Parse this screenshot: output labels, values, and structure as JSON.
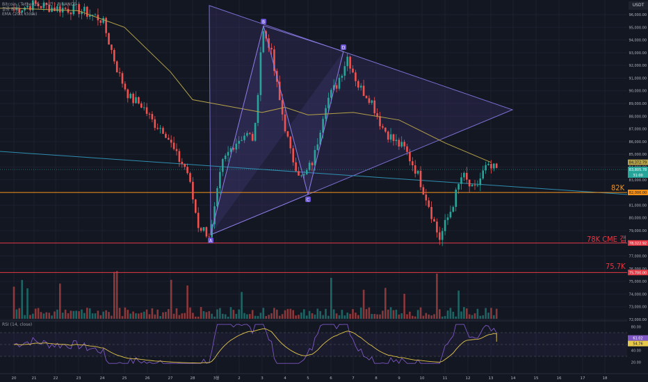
{
  "header": {
    "symbol_line": "Bitcoin / TetherUS · 1시간 · BINANCE",
    "line2": "볼륨 BTC",
    "ema_label": "EMA (200, close)",
    "currency": "USDT"
  },
  "rsi": {
    "label": "RSI (14, close)",
    "value_label": "61.02",
    "ma_label": "54.76",
    "levels": [
      70,
      50,
      30
    ]
  },
  "price_axis": {
    "ticks": [
      "96,000.00",
      "95,000.00",
      "94,000.00",
      "93,000.00",
      "92,000.00",
      "91,000.00",
      "90,000.00",
      "89,000.00",
      "88,000.00",
      "87,000.00",
      "86,000.00",
      "85,000.00",
      "84,000.00",
      "83,000.00",
      "82,000.00",
      "81,000.00",
      "80,000.00",
      "79,000.00",
      "78,000.00",
      "77,000.00",
      "76,000.00",
      "75,000.00",
      "74,000.00",
      "73,000.00",
      "72,000.00"
    ],
    "current_price": "83,805.78",
    "countdown": "31:00",
    "ema_value": "84,372.79",
    "rsi_ticks": [
      "80.00",
      "60.00",
      "40.00",
      "20.00"
    ]
  },
  "x_axis": {
    "labels": [
      "20",
      "21",
      "22",
      "23",
      "24",
      "25",
      "26",
      "27",
      "28",
      "3월",
      "2",
      "3",
      "4",
      "5",
      "6",
      "7",
      "8",
      "9",
      "10",
      "11",
      "12",
      "13",
      "14",
      "15",
      "16",
      "17",
      "18"
    ]
  },
  "annotations": {
    "level_82k": {
      "label": "82K",
      "price": "82,000.00"
    },
    "level_78k": {
      "label": "78K CME 갭",
      "price": "78,022.92"
    },
    "level_757k": {
      "label": "75.7K",
      "price": "75,700.00"
    },
    "points": [
      "A",
      "B",
      "C",
      "D"
    ]
  },
  "colors": {
    "bg": "#131722",
    "up": "#26a69a",
    "down": "#ef5350",
    "ema": "#b5a24a",
    "orange": "#f7931a",
    "red_line": "#e53945",
    "cyan": "#2f8fb0",
    "triangle_fill": "#3d3266",
    "triangle_stroke": "#7a6fd1",
    "rsi": "#7e57c2",
    "rsi_ma": "#e6c84b"
  },
  "chart_data": {
    "type": "candlestick",
    "ylim": [
      72000,
      96600
    ],
    "date_labels": [
      "20",
      "21",
      "22",
      "23",
      "24",
      "25",
      "26",
      "27",
      "28",
      "3월",
      "2",
      "3",
      "4",
      "5",
      "6",
      "7",
      "8",
      "9",
      "10",
      "11",
      "12",
      "13",
      "14",
      "15",
      "16",
      "17",
      "18"
    ],
    "close_path": [
      [
        "20",
        96400
      ],
      [
        "21",
        96800
      ],
      [
        "22",
        96500
      ],
      [
        "23",
        96400
      ],
      [
        "24",
        95600
      ],
      [
        "25",
        91300
      ],
      [
        "25",
        89400
      ],
      [
        "26",
        88900
      ],
      [
        "26",
        87500
      ],
      [
        "27",
        86900
      ],
      [
        "27",
        84900
      ],
      [
        "28",
        83800
      ],
      [
        "28",
        79400
      ],
      [
        "3월",
        78600
      ],
      [
        "3월",
        84200
      ],
      [
        "2",
        85800
      ],
      [
        "2",
        86600
      ],
      [
        "3",
        86200
      ],
      [
        "3",
        94800
      ],
      [
        "3",
        93600
      ],
      [
        "4",
        89300
      ],
      [
        "4",
        85000
      ],
      [
        "5",
        83000
      ],
      [
        "5",
        84600
      ],
      [
        "6",
        89000
      ],
      [
        "6",
        90500
      ],
      [
        "7",
        92700
      ],
      [
        "7",
        90300
      ],
      [
        "8",
        89400
      ],
      [
        "8",
        87200
      ],
      [
        "9",
        86100
      ],
      [
        "9",
        85400
      ],
      [
        "10",
        83700
      ],
      [
        "10",
        81300
      ],
      [
        "11",
        78300
      ],
      [
        "11",
        80600
      ],
      [
        "12",
        83400
      ],
      [
        "12",
        82000
      ],
      [
        "13",
        83900
      ],
      [
        "13",
        83806
      ]
    ],
    "ema200_path": [
      [
        "20",
        96500
      ],
      [
        "23",
        96300
      ],
      [
        "25",
        95000
      ],
      [
        "27",
        91500
      ],
      [
        "28",
        89300
      ],
      [
        "3",
        88300
      ],
      [
        "4",
        88700
      ],
      [
        "5",
        88100
      ],
      [
        "7",
        88300
      ],
      [
        "9",
        87700
      ],
      [
        "11",
        85900
      ],
      [
        "13",
        84373
      ]
    ],
    "levels": [
      {
        "label": "82K",
        "value": 82000
      },
      {
        "label": "78K CME 갭",
        "value": 78022.92
      },
      {
        "label": "75.7K",
        "value": 75700
      }
    ],
    "pattern_points": [
      {
        "label": "A",
        "date": "28",
        "price": 78500
      },
      {
        "label": "B",
        "date": "3",
        "price": 95100
      },
      {
        "label": "C",
        "date": "5",
        "price": 81800
      },
      {
        "label": "D",
        "date": "7",
        "price": 92900
      }
    ],
    "rsi": {
      "current": 61.02,
      "ma": 54.76,
      "levels": [
        70,
        50,
        30
      ]
    }
  }
}
